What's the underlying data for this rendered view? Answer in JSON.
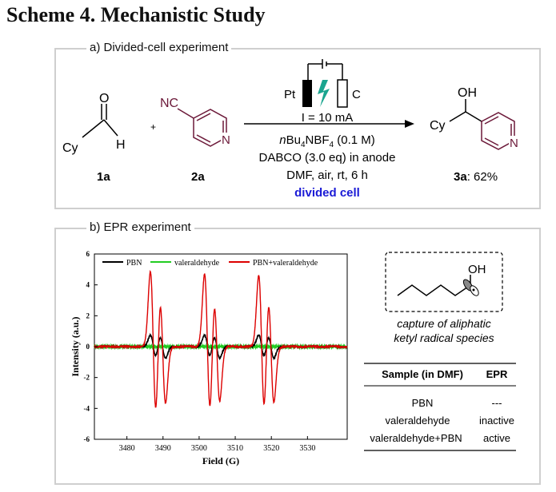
{
  "scheme_title": "Scheme 4. Mechanistic Study",
  "panel_a": {
    "label": "a) Divided-cell experiment",
    "reactant1": {
      "cy": "Cy",
      "o": "O",
      "h": "H",
      "id": "1a"
    },
    "plus": "+",
    "reactant2": {
      "nc": "NC",
      "n": "N",
      "id": "2a"
    },
    "electrodes": {
      "left": "Pt",
      "right": "C"
    },
    "conditions": {
      "current": "I = 10 mA",
      "electrolyte_prefix": "n",
      "electrolyte_main": "Bu",
      "electrolyte_sub1": "4",
      "electrolyte_mid": "NBF",
      "electrolyte_sub2": "4",
      "electrolyte_tail": " (0.1 M)",
      "base": "DABCO (3.0 eq) in anode",
      "solvent": "DMF, air, rt, 6 h",
      "cell": "divided cell"
    },
    "product": {
      "oh": "OH",
      "cy": "Cy",
      "n": "N",
      "id": "3a",
      "yield": ": 62%"
    }
  },
  "panel_b": {
    "label": "b) EPR experiment",
    "radical": {
      "oh": "OH",
      "caption_line1": "capture of aliphatic",
      "caption_line2": "ketyl radical species"
    },
    "table": {
      "headers": [
        "Sample (in DMF)",
        "EPR"
      ],
      "rows": [
        [
          "PBN",
          "---"
        ],
        [
          "valeraldehyde",
          "inactive"
        ],
        [
          "valeraldehyde+PBN",
          "active"
        ]
      ]
    }
  },
  "chart_data": {
    "type": "line",
    "xlabel": "Field (G)",
    "ylabel": "Intensity (a.u.)",
    "xlim": [
      3471,
      3541
    ],
    "ylim": [
      -6,
      6
    ],
    "x_ticks": [
      3480,
      3490,
      3500,
      3510,
      3520,
      3530
    ],
    "y_ticks": [
      6,
      4,
      2,
      0,
      -2,
      -4,
      -6
    ],
    "series": [
      {
        "name": "PBN",
        "color": "#000000",
        "lines": [
          3487.3,
          3489.9,
          3502.3,
          3504.9,
          3517.3,
          3519.9
        ],
        "amplitudes": [
          0.75,
          0.75,
          0.75,
          0.75,
          0.75,
          0.75
        ],
        "width": 0.8
      },
      {
        "name": "valeraldehyde",
        "color": "#22cc22",
        "lines": [],
        "amplitudes": [],
        "width": 0.8
      },
      {
        "name": "PBN+valeraldehyde",
        "color": "#dd0000",
        "lines": [
          3487.3,
          3489.9,
          3502.3,
          3504.9,
          3517.3,
          3519.9
        ],
        "amplitudes": [
          4.85,
          3.65,
          4.7,
          3.5,
          4.6,
          3.6
        ],
        "width": 0.8
      }
    ],
    "colors": {
      "axis": "#000000",
      "frame": "#000000"
    }
  }
}
